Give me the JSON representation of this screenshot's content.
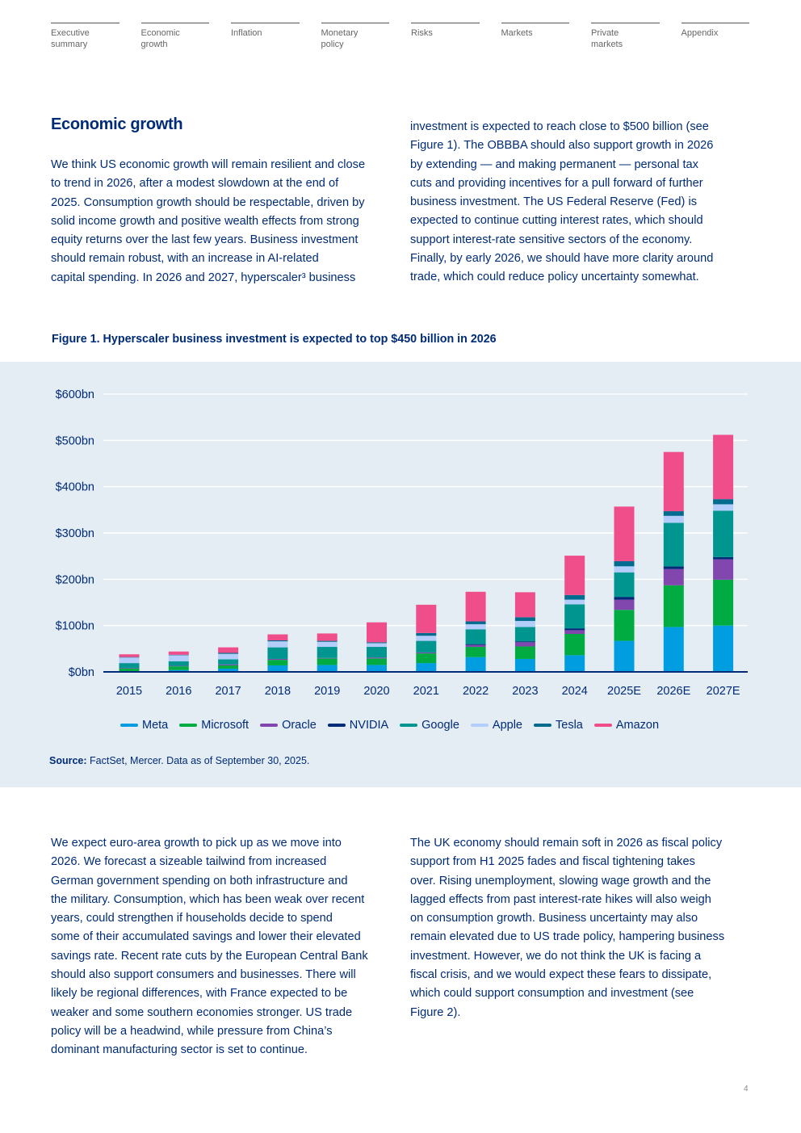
{
  "nav": [
    {
      "lines": [
        "Executive",
        "summary"
      ]
    },
    {
      "lines": [
        "Economic",
        "growth"
      ]
    },
    {
      "lines": [
        "Inflation"
      ]
    },
    {
      "lines": [
        "Monetary",
        "policy"
      ]
    },
    {
      "lines": [
        "Risks"
      ]
    },
    {
      "lines": [
        "Markets"
      ]
    },
    {
      "lines": [
        "Private",
        "markets"
      ]
    },
    {
      "lines": [
        "Appendix"
      ]
    }
  ],
  "section_title": "Economic growth",
  "intro_left": [
    "We think US economic growth will remain resilient and close",
    "to trend in 2026, after a modest slowdown at the end of",
    "2025. Consumption growth should be respectable, driven by",
    "solid income growth and positive wealth effects from strong",
    "equity returns over the last few years. Business investment",
    "should remain robust, with an increase in AI-related",
    "capital spending. In 2026 and 2027, hyperscaler³ business"
  ],
  "intro_right": [
    "investment is expected to reach close to $500 billion (see",
    "Figure 1). The OBBBA should also support growth in 2026",
    "by extending — and making permanent — personal tax",
    "cuts and providing incentives for a pull forward of further",
    "business investment. The US Federal Reserve (Fed) is",
    "expected to continue cutting interest rates, which should",
    "support interest-rate sensitive sectors of the economy.",
    "Finally, by early 2026, we should have more clarity around",
    "trade, which could reduce policy uncertainty somewhat."
  ],
  "figure_title": "Figure 1. Hyperscaler business investment is expected to top $450 billion in 2026",
  "chart_data": {
    "type": "bar",
    "stacked": true,
    "title": "Figure 1. Hyperscaler business investment is expected to top $450 billion in 2026",
    "xlabel": "",
    "ylabel": "",
    "ylim": [
      0,
      600
    ],
    "yticks": [
      0,
      100,
      200,
      300,
      400,
      500,
      600
    ],
    "ytick_labels": [
      "$0bn",
      "$100bn",
      "$200bn",
      "$300bn",
      "$400bn",
      "$500bn",
      "$600bn"
    ],
    "grid": true,
    "legend_position": "bottom",
    "categories": [
      "2015",
      "2016",
      "2017",
      "2018",
      "2019",
      "2020",
      "2021",
      "2022",
      "2023",
      "2024",
      "2025E",
      "2026E",
      "2027E"
    ],
    "series": [
      {
        "name": "Meta",
        "color": "#009de0",
        "values": [
          1,
          4,
          7,
          14,
          15,
          15,
          19,
          32,
          28,
          36,
          67,
          97,
          100
        ]
      },
      {
        "name": "Microsoft",
        "color": "#00ac41",
        "values": [
          6,
          8,
          7,
          12,
          14,
          14,
          21,
          22,
          27,
          46,
          67,
          90,
          99
        ]
      },
      {
        "name": "Oracle",
        "color": "#8246af",
        "values": [
          1,
          1,
          2,
          2,
          1,
          2,
          2,
          4,
          9,
          8,
          22,
          35,
          44
        ]
      },
      {
        "name": "NVIDIA",
        "color": "#002c77",
        "values": [
          0,
          0,
          0,
          0,
          0,
          0,
          0,
          2,
          2,
          4,
          6,
          6,
          5
        ]
      },
      {
        "name": "Google",
        "color": "#00968f",
        "values": [
          11,
          10,
          11,
          25,
          24,
          23,
          25,
          32,
          31,
          52,
          53,
          94,
          100
        ]
      },
      {
        "name": "Apple",
        "color": "#b3cefa",
        "values": [
          12,
          13,
          12,
          13,
          11,
          8,
          11,
          11,
          13,
          10,
          13,
          15,
          14
        ]
      },
      {
        "name": "Tesla",
        "color": "#006b8e",
        "values": [
          1,
          1,
          2,
          2,
          2,
          2,
          6,
          6,
          8,
          10,
          11,
          10,
          11
        ]
      },
      {
        "name": "Amazon",
        "color": "#ef4e8a",
        "values": [
          6,
          7,
          12,
          13,
          16,
          43,
          61,
          64,
          54,
          85,
          118,
          128,
          139
        ]
      }
    ]
  },
  "source_label": "Source:",
  "source_text": " FactSet, Mercer. Data as of September 30, 2025.",
  "body_left": [
    "We expect euro-area growth to pick up as we move into",
    "2026. We forecast a sizeable tailwind from increased",
    "German government spending on both infrastructure and",
    "the military. Consumption, which has been weak over recent",
    "years, could strengthen if households decide to spend",
    "some of their accumulated savings and lower their elevated",
    "savings rate. Recent rate cuts by the European Central Bank",
    "should also support consumers and businesses. There will",
    "likely be regional differences, with France expected to be",
    "weaker and some southern economies stronger. US trade",
    "policy will be a headwind, while pressure from China’s",
    "dominant manufacturing sector is set to continue."
  ],
  "body_right": [
    "The UK economy should remain soft in 2026 as fiscal policy",
    "support from H1 2025 fades and fiscal tightening takes",
    "over. Rising unemployment, slowing wage growth and the",
    "lagged effects from past interest-rate hikes will also weigh",
    "on consumption growth. Business uncertainty may also",
    "remain elevated due to US trade policy, hampering business",
    "investment. However, we do not think the UK is facing a",
    "fiscal crisis, and we would expect these fears to dissipate,",
    "which could support consumption and investment (see",
    "Figure 2)."
  ],
  "page_number": "4"
}
